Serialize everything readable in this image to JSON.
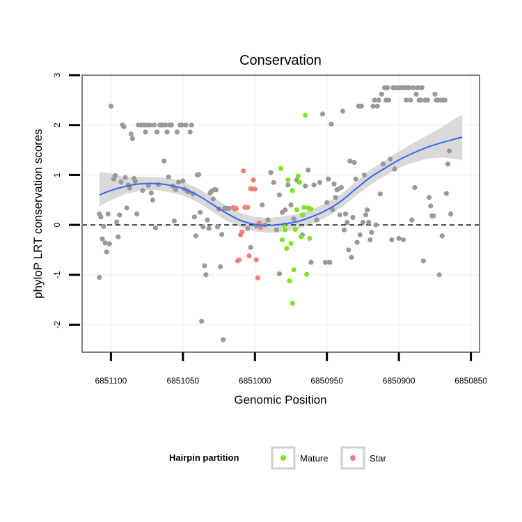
{
  "chart_data": {
    "type": "scatter",
    "title": "Conservation",
    "xlabel": "Genomic Position",
    "ylabel": "phyloP LRT conservation scores",
    "x_reversed": true,
    "xlim": [
      6851120,
      6850844
    ],
    "ylim": [
      -2.55,
      3.0
    ],
    "x_ticks": [
      6851100,
      6851050,
      6851000,
      6850950,
      6850900,
      6850850
    ],
    "x_tick_labels": [
      "6851100",
      "6851050",
      "6851000",
      "6850950",
      "6850900",
      "6850850"
    ],
    "y_ticks": [
      -2,
      -1,
      0,
      1,
      2,
      3
    ],
    "y_tick_labels": [
      "-2",
      "-1",
      "0",
      "1",
      "2",
      "3"
    ],
    "reference_line": {
      "y": 0,
      "style": "dashed",
      "color": "#000000"
    },
    "colors": {
      "other": "#999999",
      "Mature": "#7fe61c",
      "Star": "#f08078",
      "smooth_line": "#3366ff",
      "smooth_band": "#cccccc",
      "panel_border": "#7f7f7f",
      "grid": "#f5f5f5"
    },
    "legend": {
      "title": "Hairpin partition",
      "placement": "bottom",
      "entries": [
        {
          "label": "Mature",
          "series": "Mature"
        },
        {
          "label": "Star",
          "series": "Star"
        }
      ]
    },
    "series": [
      {
        "name": "other",
        "points": [
          [
            6851108,
            -1.05
          ],
          [
            6851108,
            0.22
          ],
          [
            6851107,
            0.16
          ],
          [
            6851106,
            -0.28
          ],
          [
            6851105,
            -0.03
          ],
          [
            6851104,
            -0.36
          ],
          [
            6851103,
            -0.54
          ],
          [
            6851102,
            0.22
          ],
          [
            6851101,
            -0.38
          ],
          [
            6851100,
            2.38
          ],
          [
            6851098,
            0.92
          ],
          [
            6851097,
            0.99
          ],
          [
            6851096,
            0.06
          ],
          [
            6851095,
            -0.24
          ],
          [
            6851094,
            0.2
          ],
          [
            6851093,
            0.86
          ],
          [
            6851092,
            2.0
          ],
          [
            6851091,
            1.97
          ],
          [
            6851090,
            0.95
          ],
          [
            6851089,
            0.34
          ],
          [
            6851088,
            0.8
          ],
          [
            6851087,
            0.74
          ],
          [
            6851086,
            1.82
          ],
          [
            6851085,
            1.73
          ],
          [
            6851084,
            0.93
          ],
          [
            6851083,
            0.87
          ],
          [
            6851082,
            0.22
          ],
          [
            6851081,
            2.0
          ],
          [
            6851079,
            2.0
          ],
          [
            6851078,
            0.69
          ],
          [
            6851077,
            2.0
          ],
          [
            6851076,
            1.86
          ],
          [
            6851075,
            2.0
          ],
          [
            6851074,
            0.79
          ],
          [
            6851073,
            2.0
          ],
          [
            6851072,
            0.64
          ],
          [
            6851071,
            0.5
          ],
          [
            6851070,
            2.0
          ],
          [
            6851069,
            -0.06
          ],
          [
            6851068,
            1.86
          ],
          [
            6851067,
            0.81
          ],
          [
            6851066,
            2.0
          ],
          [
            6851065,
            2.0
          ],
          [
            6851064,
            2.0
          ],
          [
            6851063,
            1.28
          ],
          [
            6851062,
            2.0
          ],
          [
            6851061,
            1.86
          ],
          [
            6851060,
            0.96
          ],
          [
            6851059,
            2.0
          ],
          [
            6851058,
            2.0
          ],
          [
            6851057,
            0.78
          ],
          [
            6851056,
            0.08
          ],
          [
            6851055,
            0.71
          ],
          [
            6851054,
            1.86
          ],
          [
            6851053,
            0.86
          ],
          [
            6851052,
            2.0
          ],
          [
            6851051,
            2.0
          ],
          [
            6851050,
            0.88
          ],
          [
            6851049,
            0.72
          ],
          [
            6851048,
            2.0
          ],
          [
            6851047,
            0.68
          ],
          [
            6851046,
            0.66
          ],
          [
            6851045,
            1.86
          ],
          [
            6851044,
            2.0
          ],
          [
            6851043,
            0.62
          ],
          [
            6851042,
            0.16
          ],
          [
            6851041,
            -0.22
          ],
          [
            6851040,
            1.0
          ],
          [
            6851039,
            1.01
          ],
          [
            6851038,
            0.25
          ],
          [
            6851037,
            -1.93
          ],
          [
            6851036,
            -0.04
          ],
          [
            6851035,
            -0.82
          ],
          [
            6851034,
            -1.0
          ],
          [
            6851033,
            0.1
          ],
          [
            6851032,
            -0.07
          ],
          [
            6851031,
            0.64
          ],
          [
            6851030,
            0.68
          ],
          [
            6851029,
            0.52
          ],
          [
            6851028,
            0.71
          ],
          [
            6851027,
            0.7
          ],
          [
            6851026,
            -0.04
          ],
          [
            6851025,
            0.32
          ],
          [
            6851024,
            -0.84
          ],
          [
            6851023,
            -0.19
          ],
          [
            6851022,
            -2.3
          ],
          [
            6851021,
            0.33
          ],
          [
            6851020,
            0.33
          ],
          [
            6851019,
            0.33
          ],
          [
            6851018,
            0.33
          ],
          [
            6850999,
            -0.02
          ],
          [
            6850997,
            0.03
          ],
          [
            6850995,
            0.4
          ],
          [
            6850993,
            0.0
          ],
          [
            6850991,
            0.1
          ],
          [
            6850989,
            1.05
          ],
          [
            6850987,
            0.85
          ],
          [
            6850985,
            -0.1
          ],
          [
            6850983,
            0.6
          ],
          [
            6850981,
            0.25
          ],
          [
            6850979,
            0.3
          ],
          [
            6850977,
            0.8
          ],
          [
            6850975,
            0.4
          ],
          [
            6850973,
            0.12
          ],
          [
            6850971,
            0.9
          ],
          [
            6850969,
            0.85
          ],
          [
            6850967,
            -0.2
          ],
          [
            6850965,
            0.78
          ],
          [
            6850963,
            1.1
          ],
          [
            6850961,
            -0.75
          ],
          [
            6850959,
            0.8
          ],
          [
            6850957,
            0.1
          ],
          [
            6850955,
            0.85
          ],
          [
            6850953,
            2.22
          ],
          [
            6850951,
            -0.75
          ],
          [
            6850950,
            0.45
          ],
          [
            6850949,
            0.92
          ],
          [
            6850948,
            -0.75
          ],
          [
            6850947,
            2.02
          ],
          [
            6850946,
            0.3
          ],
          [
            6850945,
            0.82
          ],
          [
            6850944,
            0.55
          ],
          [
            6850943,
            0.7
          ],
          [
            6850942,
            0.72
          ],
          [
            6850941,
            0.2
          ],
          [
            6850940,
            0.75
          ],
          [
            6850939,
            2.28
          ],
          [
            6850938,
            -0.1
          ],
          [
            6850937,
            0.22
          ],
          [
            6850936,
            0.05
          ],
          [
            6850935,
            -0.5
          ],
          [
            6850934,
            1.28
          ],
          [
            6850933,
            -0.65
          ],
          [
            6850932,
            0.15
          ],
          [
            6850931,
            1.25
          ],
          [
            6850930,
            0.92
          ],
          [
            6850929,
            -0.35
          ],
          [
            6850928,
            2.38
          ],
          [
            6850927,
            -0.2
          ],
          [
            6850926,
            2.38
          ],
          [
            6850925,
            0.05
          ],
          [
            6850924,
            1.0
          ],
          [
            6850923,
            0.2
          ],
          [
            6850922,
            0.3
          ],
          [
            6850921,
            0.05
          ],
          [
            6850920,
            -0.3
          ],
          [
            6850919,
            -0.15
          ],
          [
            6850918,
            2.38
          ],
          [
            6850917,
            2.5
          ],
          [
            6850916,
            0.0
          ],
          [
            6850915,
            2.38
          ],
          [
            6850914,
            2.5
          ],
          [
            6850913,
            0.62
          ],
          [
            6850912,
            2.62
          ],
          [
            6850911,
            1.22
          ],
          [
            6850910,
            2.75
          ],
          [
            6850909,
            2.5
          ],
          [
            6850908,
            2.75
          ],
          [
            6850907,
            2.5
          ],
          [
            6850906,
            1.32
          ],
          [
            6850905,
            -0.3
          ],
          [
            6850904,
            2.75
          ],
          [
            6850903,
            1.12
          ],
          [
            6850902,
            2.75
          ],
          [
            6850901,
            2.75
          ],
          [
            6850900,
            -0.27
          ],
          [
            6850899,
            2.75
          ],
          [
            6850898,
            2.75
          ],
          [
            6850897,
            -0.3
          ],
          [
            6850896,
            2.75
          ],
          [
            6850895,
            2.5
          ],
          [
            6850894,
            2.75
          ],
          [
            6850893,
            2.75
          ],
          [
            6850892,
            2.5
          ],
          [
            6850891,
            0.1
          ],
          [
            6850890,
            2.75
          ],
          [
            6850889,
            0.75
          ],
          [
            6850888,
            2.62
          ],
          [
            6850887,
            2.75
          ],
          [
            6850886,
            2.5
          ],
          [
            6850885,
            2.5
          ],
          [
            6850884,
            2.75
          ],
          [
            6850883,
            -0.72
          ],
          [
            6850882,
            2.5
          ],
          [
            6850881,
            2.5
          ],
          [
            6850880,
            2.5
          ],
          [
            6850879,
            0.55
          ],
          [
            6850878,
            0.38
          ],
          [
            6850877,
            0.18
          ],
          [
            6850876,
            0.18
          ],
          [
            6850875,
            2.62
          ],
          [
            6850874,
            2.5
          ],
          [
            6850873,
            2.5
          ],
          [
            6850872,
            -1.0
          ],
          [
            6850871,
            2.5
          ],
          [
            6850870,
            -0.22
          ],
          [
            6850869,
            2.5
          ],
          [
            6850868,
            2.5
          ],
          [
            6850867,
            0.63
          ],
          [
            6850866,
            1.22
          ],
          [
            6850865,
            1.48
          ],
          [
            6850864,
            0.22
          ],
          [
            6851005,
            -0.07
          ],
          [
            6851003,
            -0.45
          ],
          [
            6850983,
            -0.98
          ]
        ]
      },
      {
        "name": "Mature",
        "points": [
          [
            6850982,
            1.13
          ],
          [
            6850981,
            -0.3
          ],
          [
            6850980,
            0.0
          ],
          [
            6850979,
            -0.1
          ],
          [
            6850978,
            -0.47
          ],
          [
            6850977,
            0.9
          ],
          [
            6850976,
            -1.12
          ],
          [
            6850975,
            -0.37
          ],
          [
            6850974,
            0.69
          ],
          [
            6850973,
            -0.9
          ],
          [
            6850972,
            -0.09
          ],
          [
            6850971,
            0.3
          ],
          [
            6850970,
            0.98
          ],
          [
            6850969,
            0.85
          ],
          [
            6850968,
            -0.24
          ],
          [
            6850967,
            0.2
          ],
          [
            6850966,
            0.35
          ],
          [
            6850965,
            2.2
          ],
          [
            6850964,
            -0.99
          ],
          [
            6850963,
            0.34
          ],
          [
            6850962,
            -0.27
          ],
          [
            6850961,
            0.32
          ],
          [
            6850974,
            -1.57
          ]
        ]
      },
      {
        "name": "Star",
        "points": [
          [
            6851015,
            0.35
          ],
          [
            6851014,
            0.32
          ],
          [
            6851013,
            0.33
          ],
          [
            6851012,
            -0.72
          ],
          [
            6851011,
            -0.7
          ],
          [
            6851010,
            -0.2
          ],
          [
            6851009,
            -0.14
          ],
          [
            6851008,
            1.08
          ],
          [
            6851007,
            0.35
          ],
          [
            6851006,
            0.35
          ],
          [
            6851005,
            0.35
          ],
          [
            6851004,
            -0.62
          ],
          [
            6851003,
            0.73
          ],
          [
            6851002,
            0.72
          ],
          [
            6851001,
            0.9
          ],
          [
            6851000,
            0.72
          ],
          [
            6850999,
            -0.7
          ],
          [
            6850998,
            -1.06
          ],
          [
            6850997,
            0.04
          ],
          [
            6850996,
            -0.05
          ]
        ]
      }
    ],
    "smooth": {
      "method": "loess",
      "x": [
        6851108,
        6851100,
        6851090,
        6851080,
        6851070,
        6851060,
        6851050,
        6851040,
        6851030,
        6851020,
        6851010,
        6851000,
        6850990,
        6850980,
        6850970,
        6850960,
        6850950,
        6850940,
        6850930,
        6850920,
        6850910,
        6850900,
        6850890,
        6850880,
        6850870,
        6850860,
        6850856
      ],
      "y": [
        0.6,
        0.69,
        0.77,
        0.82,
        0.83,
        0.8,
        0.73,
        0.6,
        0.42,
        0.24,
        0.09,
        0.01,
        -0.01,
        0.02,
        0.07,
        0.17,
        0.3,
        0.48,
        0.72,
        0.95,
        1.13,
        1.3,
        1.44,
        1.56,
        1.65,
        1.73,
        1.76
      ],
      "lower": [
        0.37,
        0.5,
        0.62,
        0.68,
        0.7,
        0.66,
        0.59,
        0.46,
        0.27,
        0.09,
        -0.05,
        -0.13,
        -0.16,
        -0.13,
        -0.08,
        0.03,
        0.16,
        0.35,
        0.58,
        0.8,
        0.98,
        1.14,
        1.25,
        1.33,
        1.35,
        1.32,
        1.29
      ],
      "upper": [
        1.06,
        1.03,
        0.95,
        0.96,
        0.96,
        0.94,
        0.87,
        0.74,
        0.57,
        0.39,
        0.24,
        0.16,
        0.14,
        0.17,
        0.22,
        0.31,
        0.45,
        0.62,
        0.86,
        1.1,
        1.28,
        1.47,
        1.64,
        1.8,
        1.96,
        2.15,
        2.2
      ]
    }
  }
}
